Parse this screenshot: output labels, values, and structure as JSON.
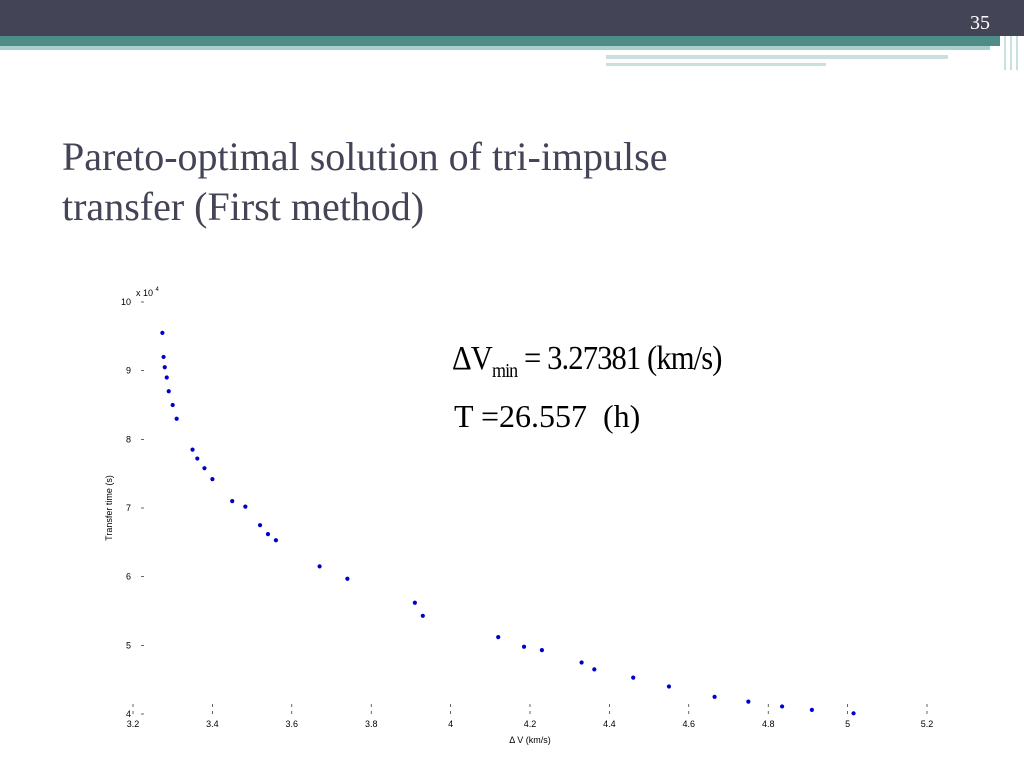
{
  "slide": {
    "number": "35",
    "title_line1": "Pareto-optimal solution of tri-impulse",
    "title_line2": "transfer (First method)"
  },
  "annotations": {
    "dv_symbol": "ΔV",
    "dv_sub": "min",
    "dv_value": "= 3.27381 (km/s)",
    "t_value": "T =26.557  (h)"
  },
  "colors": {
    "points": "#0000cc",
    "title": "#444457",
    "topbar": "#444457",
    "accent": "#4e8c88"
  },
  "chart_data": {
    "type": "scatter",
    "xlabel": "Δ V (km/s)",
    "ylabel": "Transfer time (s)",
    "y_multiplier_label": "x 10",
    "y_multiplier_exp": "4",
    "xlim": [
      3.2,
      5.2
    ],
    "ylim": [
      4,
      10
    ],
    "xticks": [
      "3.2",
      "3.4",
      "3.6",
      "3.8",
      "4",
      "4.2",
      "4.4",
      "4.6",
      "4.8",
      "5",
      "5.2"
    ],
    "yticks": [
      "4",
      "5",
      "6",
      "7",
      "8",
      "9",
      "10"
    ],
    "grid": false,
    "series": [
      {
        "color": "#0000cc",
        "points": [
          [
            3.274,
            9.55
          ],
          [
            3.277,
            9.2
          ],
          [
            3.28,
            9.05
          ],
          [
            3.285,
            8.9
          ],
          [
            3.29,
            8.7
          ],
          [
            3.3,
            8.5
          ],
          [
            3.31,
            8.3
          ],
          [
            3.35,
            7.85
          ],
          [
            3.362,
            7.72
          ],
          [
            3.38,
            7.58
          ],
          [
            3.4,
            7.42
          ],
          [
            3.45,
            7.1
          ],
          [
            3.483,
            7.02
          ],
          [
            3.52,
            6.75
          ],
          [
            3.54,
            6.62
          ],
          [
            3.56,
            6.53
          ],
          [
            3.67,
            6.15
          ],
          [
            3.74,
            5.97
          ],
          [
            3.91,
            5.62
          ],
          [
            3.93,
            5.43
          ],
          [
            4.12,
            5.12
          ],
          [
            4.185,
            4.98
          ],
          [
            4.23,
            4.93
          ],
          [
            4.33,
            4.75
          ],
          [
            4.362,
            4.65
          ],
          [
            4.46,
            4.53
          ],
          [
            4.55,
            4.4
          ],
          [
            4.665,
            4.25
          ],
          [
            4.75,
            4.18
          ],
          [
            4.835,
            4.11
          ],
          [
            4.91,
            4.06
          ],
          [
            5.015,
            4.01
          ]
        ]
      }
    ]
  }
}
